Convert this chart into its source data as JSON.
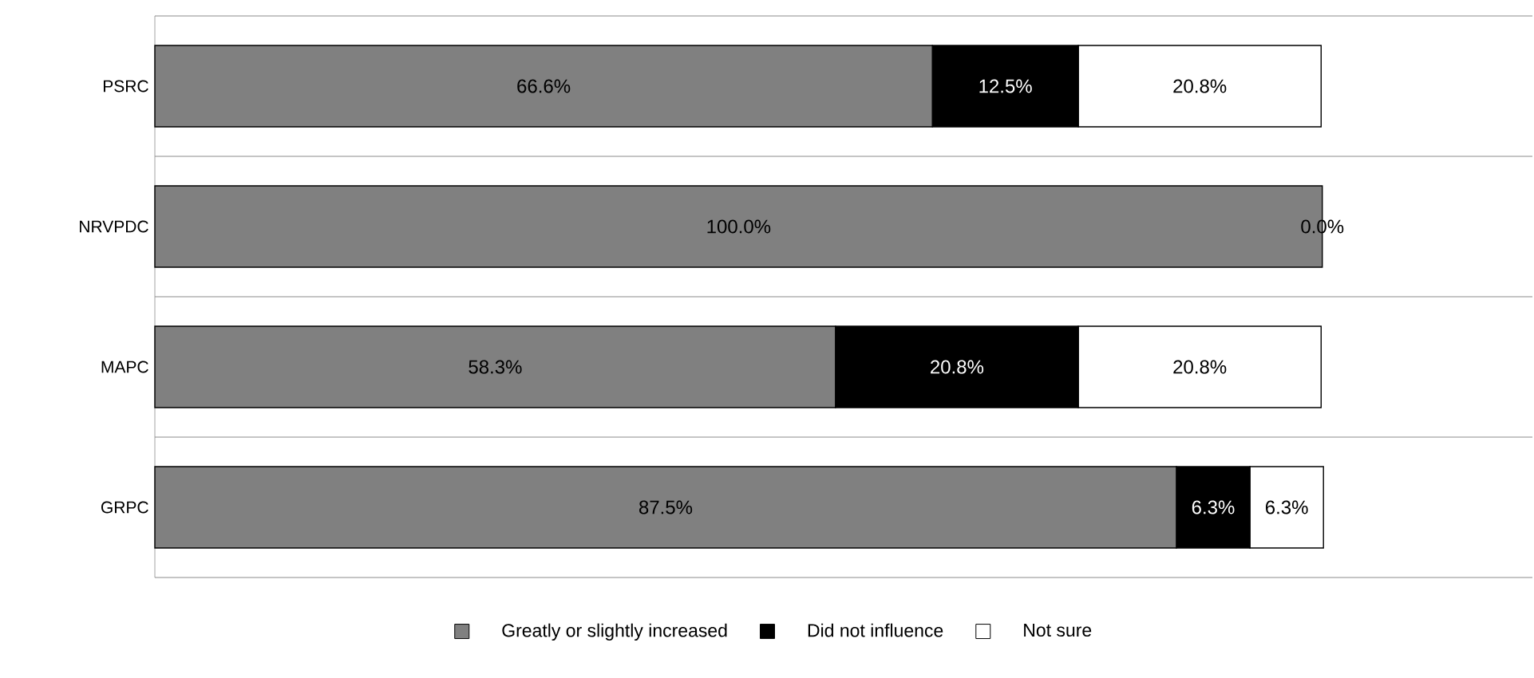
{
  "chart_data": {
    "type": "bar",
    "orientation": "horizontal",
    "stacked": true,
    "categories": [
      "PSRC",
      "NRVPDC",
      "MAPC",
      "GRPC"
    ],
    "series": [
      {
        "name": "Greatly or slightly increased",
        "color": "#808080",
        "values": [
          66.6,
          100.0,
          58.3,
          87.5
        ],
        "value_labels": [
          "66.6%",
          "100.0%",
          "58.3%",
          "87.5%"
        ]
      },
      {
        "name": "Did not influence",
        "color": "#000000",
        "values": [
          12.5,
          0.0,
          20.8,
          6.3
        ],
        "value_labels": [
          "12.5%",
          null,
          "20.8%",
          "6.3%"
        ]
      },
      {
        "name": "Not sure",
        "color": "#ffffff",
        "values": [
          20.8,
          0.0,
          20.8,
          6.3
        ],
        "value_labels": [
          "20.8%",
          "0.0%",
          "20.8%",
          "6.3%"
        ]
      }
    ],
    "xlim": [
      0,
      118
    ],
    "tick_labels": "y",
    "grid": "y",
    "legend": "bottom"
  }
}
